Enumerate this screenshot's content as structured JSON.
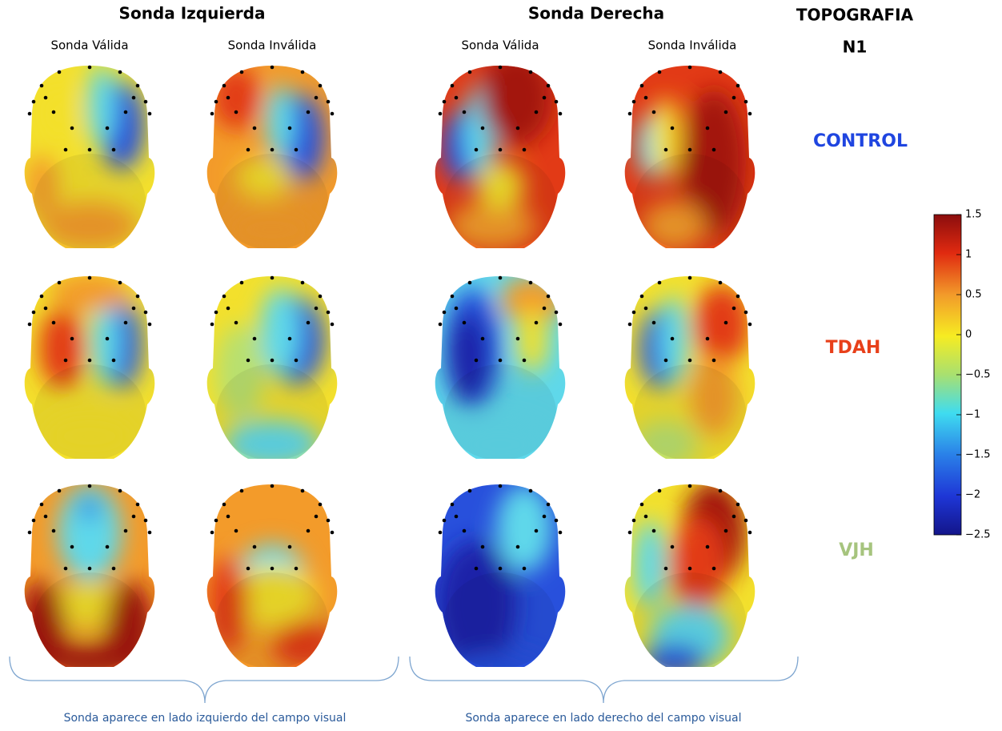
{
  "header": {
    "left_title": "Sonda Izquierda",
    "right_title": "Sonda Derecha",
    "topography_title": "TOPOGRAFIA",
    "component": "N1"
  },
  "columns": [
    "Sonda Válida",
    "Sonda Inválida",
    "Sonda Válida",
    "Sonda Inválida"
  ],
  "rows": [
    "CONTROL",
    "TDAH",
    "VJH"
  ],
  "colorbar": {
    "lim": [
      -2.5,
      1.5
    ],
    "ticks": [
      1.5,
      1,
      0.5,
      0,
      {
        "value": -0.5,
        "label": "−0.5"
      },
      {
        "value": -1,
        "label": "−1"
      },
      {
        "value": -1.5,
        "label": "−1.5"
      },
      {
        "value": -2,
        "label": "−2"
      },
      {
        "value": -2.5,
        "label": "−2.5"
      }
    ]
  },
  "captions": [
    "Sonda aparece en lado izquierdo del campo visual",
    "Sonda aparece en lado derecho del campo visual"
  ]
}
